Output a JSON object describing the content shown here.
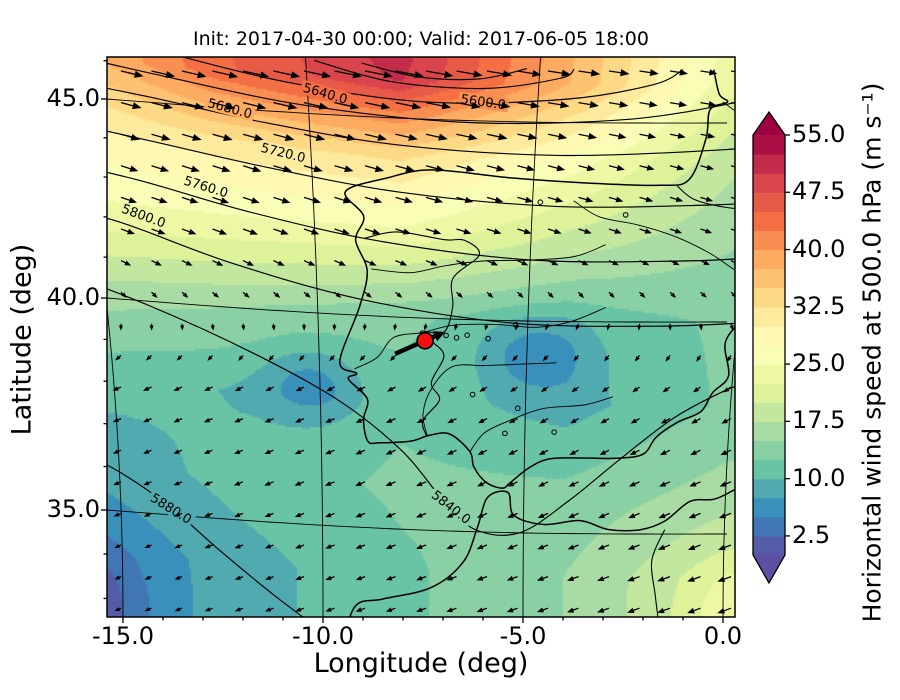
{
  "title": "Init: 2017-04-30 00:00; Valid: 2017-06-05 18:00",
  "axes": {
    "xlabel": "Longitude (deg)",
    "ylabel": "Latitude (deg)",
    "xticks": [
      "-15.0",
      "-10.0",
      "-5.0",
      "0.0"
    ],
    "yticks": [
      "45.0",
      "40.0",
      "35.0"
    ]
  },
  "colorbar": {
    "label": "Horizontal wind speed at 500.0 hPa (m s⁻¹)",
    "ticks": [
      "55.0",
      "47.5",
      "40.0",
      "32.5",
      "25.0",
      "17.5",
      "10.0",
      "2.5"
    ],
    "vmin": 0.0,
    "vmax": 55.0,
    "band_step": 2.5,
    "extend": "both",
    "colormap": "Spectral_r",
    "anchors": [
      "#5e4fa2",
      "#3288bd",
      "#66c2a5",
      "#abdda4",
      "#e6f598",
      "#ffffbf",
      "#fee08b",
      "#fdae61",
      "#f46d43",
      "#d53e4f",
      "#9e0142"
    ]
  },
  "chart_data": {
    "type": "heatmap",
    "subtype": "filled-contour wind speed map with geopotential contours and quiver",
    "xlabel": "Longitude (deg)",
    "ylabel": "Latitude (deg)",
    "xlim": [
      -16.5,
      0.5
    ],
    "ylim": [
      32.3,
      46.6
    ],
    "xtick_values": [
      -15,
      -10,
      -5,
      0
    ],
    "ytick_values": [
      45,
      40,
      35
    ],
    "wind_speed_grid": {
      "lons": [
        -16,
        -12,
        -8,
        -4,
        0
      ],
      "lats": [
        34,
        36,
        38,
        40,
        42,
        44,
        46
      ],
      "speed": [
        [
          5,
          9,
          12,
          15,
          21
        ],
        [
          8,
          11,
          13,
          13,
          16
        ],
        [
          11,
          10,
          12,
          9,
          13
        ],
        [
          16,
          15,
          13,
          11,
          13
        ],
        [
          24,
          24,
          24,
          19,
          15
        ],
        [
          28,
          31,
          33,
          26,
          17
        ],
        [
          33,
          44,
          49,
          36,
          20
        ]
      ],
      "u": [
        [
          -4,
          -8,
          -11,
          -14,
          -19
        ],
        [
          -7,
          -10,
          -12,
          -12,
          -15
        ],
        [
          -9,
          -9,
          -11,
          -8,
          -11
        ],
        [
          4,
          3,
          0,
          -2,
          2
        ],
        [
          22,
          22,
          22,
          17,
          13
        ],
        [
          27,
          30,
          31,
          25,
          16
        ],
        [
          32,
          43,
          48,
          34,
          19
        ]
      ],
      "v": [
        [
          -2,
          -3,
          -4,
          -5,
          -7
        ],
        [
          -3,
          -4,
          -5,
          -6,
          -6
        ],
        [
          -4,
          -4,
          -5,
          -5,
          -6
        ],
        [
          -5,
          -5,
          -5,
          -5,
          -5
        ],
        [
          -7,
          -8,
          -7,
          -6,
          -5
        ],
        [
          -8,
          -9,
          -8,
          -6,
          -4
        ],
        [
          -7,
          -10,
          -9,
          -5,
          -3
        ]
      ],
      "anomalies": [
        {
          "lon": -7.8,
          "lat": 46.8,
          "amp": 2.0,
          "rlon": 3.2,
          "rlat": 1.2
        },
        {
          "lon": -4.8,
          "lat": 39.2,
          "amp": -5.0,
          "rlon": 1.3,
          "rlat": 0.9
        },
        {
          "lon": -10.2,
          "lat": 38.3,
          "amp": -5.0,
          "rlon": 1.2,
          "rlat": 0.9
        },
        {
          "lon": -16.5,
          "lat": 32.8,
          "amp": -7.0,
          "rlon": 1.8,
          "rlat": 1.4
        },
        {
          "lon": 0.5,
          "lat": 33.0,
          "amp": 4.0,
          "rlon": 1.5,
          "rlat": 1.2
        }
      ]
    },
    "geopotential_contours": [
      {
        "level": "",
        "pts": [
          [
            -9.8,
            46.4
          ],
          [
            -8.2,
            45.95
          ],
          [
            -6.2,
            45.85
          ],
          [
            -4.6,
            46.15
          ],
          [
            -4.3,
            46.4
          ]
        ]
      },
      {
        "level": "",
        "pts": [
          [
            -8.8,
            46.4
          ],
          [
            -7.6,
            46.1
          ],
          [
            -6.3,
            46.1
          ],
          [
            -5.3,
            46.4
          ]
        ]
      },
      {
        "level": "5600.0",
        "pts": [
          [
            -13.2,
            46.4
          ],
          [
            -10.5,
            45.8
          ],
          [
            -7.5,
            45.45
          ],
          [
            -4.5,
            45.6
          ],
          [
            -2.6,
            46.0
          ],
          [
            -2.0,
            46.4
          ]
        ],
        "label": [
          -6.2,
          45.5
        ],
        "rot": 8
      },
      {
        "level": "5640.0",
        "pts": [
          [
            -15.8,
            46.4
          ],
          [
            -13.0,
            45.7
          ],
          [
            -10.0,
            45.2
          ],
          [
            -6.5,
            44.95
          ],
          [
            -3.0,
            45.1
          ],
          [
            -0.5,
            45.6
          ],
          [
            0.5,
            45.9
          ]
        ],
        "label": [
          -9.6,
          45.55
        ],
        "rot": 16
      },
      {
        "level": "5680.0",
        "pts": [
          [
            -16.6,
            45.85
          ],
          [
            -13.5,
            45.15
          ],
          [
            -11.0,
            44.7
          ],
          [
            -8.0,
            44.3
          ],
          [
            -4.5,
            44.15
          ],
          [
            -1.0,
            44.3
          ],
          [
            0.5,
            44.5
          ]
        ],
        "label": [
          -11.7,
          45.0
        ],
        "rot": 15
      },
      {
        "level": "5720.0",
        "pts": [
          [
            -16.6,
            44.75
          ],
          [
            -13.5,
            44.0
          ],
          [
            -11.0,
            43.55
          ],
          [
            -8.0,
            43.1
          ],
          [
            -4.5,
            42.85
          ],
          [
            -1.0,
            42.9
          ],
          [
            0.5,
            43.0
          ]
        ],
        "label": [
          -10.6,
          43.95
        ],
        "rot": 14
      },
      {
        "level": "5760.0",
        "pts": [
          [
            -16.6,
            43.65
          ],
          [
            -14.0,
            43.0
          ],
          [
            -11.5,
            42.4
          ],
          [
            -8.5,
            41.85
          ],
          [
            -5.0,
            41.5
          ],
          [
            -1.5,
            41.5
          ],
          [
            0.5,
            41.6
          ]
        ],
        "label": [
          -12.4,
          42.95
        ],
        "rot": 17
      },
      {
        "level": "5800.0",
        "pts": [
          [
            -16.6,
            42.5
          ],
          [
            -14.5,
            41.9
          ],
          [
            -12.0,
            41.1
          ],
          [
            -9.0,
            40.4
          ],
          [
            -5.5,
            39.95
          ],
          [
            -2.0,
            39.9
          ],
          [
            0.5,
            40.0
          ]
        ],
        "label": [
          -13.9,
          42.1
        ],
        "rot": 20
      },
      {
        "level": "5840.0",
        "pts": [
          [
            -16.6,
            40.9
          ],
          [
            -14.0,
            39.9
          ],
          [
            -11.5,
            38.9
          ],
          [
            -9.5,
            37.9
          ],
          [
            -8.0,
            36.8
          ],
          [
            -7.0,
            35.7
          ],
          [
            -6.2,
            35.05
          ],
          [
            -5.1,
            35.0
          ],
          [
            -3.9,
            35.75
          ],
          [
            -2.7,
            36.7
          ],
          [
            -1.4,
            37.7
          ],
          [
            -0.2,
            38.35
          ],
          [
            0.5,
            38.6
          ]
        ],
        "label": [
          -6.8,
          35.55
        ],
        "rot": 38
      },
      {
        "level": "5880.0",
        "pts": [
          [
            -16.6,
            36.7
          ],
          [
            -15.0,
            35.9
          ],
          [
            -13.8,
            35.2
          ],
          [
            -12.6,
            34.3
          ],
          [
            -11.3,
            33.4
          ],
          [
            -10.2,
            32.7
          ],
          [
            -9.6,
            32.2
          ]
        ],
        "label": [
          -13.75,
          35.15
        ],
        "rot": 32
      }
    ],
    "marker": {
      "lon": -7.45,
      "lat": 39.45,
      "color": "#f01010",
      "edge": "#000000",
      "arrow": {
        "dx1": -30,
        "dy1": 13,
        "dx2": 20,
        "dy2": -9
      }
    },
    "geography": {
      "coasts": [
        [
          [
            -1.35,
            46.4
          ],
          [
            -1.15,
            45.75
          ],
          [
            -0.95,
            45.55
          ],
          [
            -1.3,
            45.35
          ],
          [
            -1.3,
            44.6
          ],
          [
            -1.55,
            43.55
          ],
          [
            -2.2,
            43.4
          ],
          [
            -3.8,
            43.45
          ],
          [
            -5.5,
            43.55
          ],
          [
            -7.3,
            43.7
          ],
          [
            -8.3,
            43.45
          ],
          [
            -9.25,
            43.05
          ],
          [
            -8.85,
            42.45
          ],
          [
            -9.05,
            41.85
          ],
          [
            -8.8,
            41.1
          ],
          [
            -9.0,
            40.2
          ],
          [
            -9.5,
            38.85
          ],
          [
            -9.1,
            38.6
          ],
          [
            -9.3,
            38.45
          ],
          [
            -8.85,
            38.0
          ],
          [
            -8.95,
            37.5
          ],
          [
            -8.85,
            37.0
          ],
          [
            -8.55,
            36.98
          ],
          [
            -7.8,
            37.05
          ],
          [
            -7.35,
            37.2
          ],
          [
            -6.85,
            37.25
          ],
          [
            -6.35,
            36.85
          ],
          [
            -6.25,
            36.5
          ],
          [
            -5.95,
            36.15
          ],
          [
            -5.55,
            36.02
          ],
          [
            -5.35,
            36.15
          ],
          [
            -4.9,
            36.5
          ],
          [
            -4.4,
            36.72
          ],
          [
            -3.6,
            36.75
          ],
          [
            -2.75,
            36.75
          ],
          [
            -2.1,
            36.85
          ],
          [
            -1.8,
            37.25
          ],
          [
            -1.3,
            37.6
          ],
          [
            -0.75,
            37.85
          ],
          [
            -0.5,
            38.3
          ],
          [
            -0.15,
            38.7
          ],
          [
            -0.3,
            39.5
          ],
          [
            0.05,
            40.05
          ],
          [
            0.5,
            40.55
          ]
        ],
        [
          [
            -9.55,
            32.2
          ],
          [
            -9.2,
            33.2
          ],
          [
            -8.5,
            33.4
          ],
          [
            -7.3,
            33.7
          ],
          [
            -6.5,
            34.3
          ],
          [
            -6.15,
            35.1
          ],
          [
            -5.9,
            35.8
          ],
          [
            -5.4,
            35.92
          ],
          [
            -5.25,
            35.4
          ],
          [
            -4.5,
            35.2
          ],
          [
            -3.6,
            35.3
          ],
          [
            -2.9,
            35.1
          ],
          [
            -2.1,
            35.1
          ],
          [
            -1.5,
            35.3
          ],
          [
            -0.9,
            35.75
          ],
          [
            -0.3,
            35.8
          ],
          [
            0.15,
            36.0
          ],
          [
            0.5,
            36.2
          ]
        ]
      ],
      "borders": [
        [
          [
            -8.85,
            41.9
          ],
          [
            -8.1,
            42.1
          ],
          [
            -7.0,
            41.95
          ],
          [
            -6.55,
            41.95
          ],
          [
            -6.2,
            41.6
          ],
          [
            -6.8,
            41.0
          ],
          [
            -6.8,
            40.3
          ],
          [
            -7.0,
            39.68
          ],
          [
            -7.55,
            39.68
          ],
          [
            -7.3,
            39.45
          ],
          [
            -7.0,
            39.1
          ],
          [
            -7.3,
            38.45
          ],
          [
            -7.1,
            38.05
          ],
          [
            -7.5,
            37.55
          ],
          [
            -7.42,
            37.2
          ]
        ],
        [
          [
            -1.8,
            43.38
          ],
          [
            -1.4,
            43.05
          ],
          [
            -0.7,
            42.85
          ],
          [
            0.5,
            42.7
          ]
        ],
        [
          [
            -1.5,
            35.1
          ],
          [
            -1.8,
            34.4
          ],
          [
            -1.7,
            33.6
          ],
          [
            -1.6,
            32.9
          ],
          [
            -1.55,
            32.3
          ]
        ]
      ],
      "rivers": [
        [
          [
            -8.7,
            41.15
          ],
          [
            -7.8,
            41.1
          ],
          [
            -7.0,
            41.3
          ],
          [
            -6.1,
            41.45
          ],
          [
            -5.0,
            41.5
          ],
          [
            -4.0,
            41.6
          ],
          [
            -3.3,
            41.9
          ]
        ],
        [
          [
            -9.15,
            38.7
          ],
          [
            -8.6,
            39.0
          ],
          [
            -8.2,
            39.5
          ],
          [
            -7.5,
            39.65
          ],
          [
            -6.8,
            39.85
          ],
          [
            -5.8,
            39.9
          ],
          [
            -4.8,
            39.85
          ],
          [
            -4.0,
            40.0
          ],
          [
            -3.2,
            40.35
          ]
        ],
        [
          [
            -7.4,
            37.2
          ],
          [
            -7.5,
            37.7
          ],
          [
            -7.3,
            38.3
          ],
          [
            -6.8,
            38.85
          ],
          [
            -6.0,
            38.9
          ],
          [
            -5.2,
            38.95
          ],
          [
            -4.3,
            39.0
          ]
        ],
        [
          [
            -6.35,
            36.85
          ],
          [
            -6.0,
            37.3
          ],
          [
            -5.4,
            37.6
          ],
          [
            -4.6,
            37.9
          ],
          [
            -3.6,
            38.0
          ],
          [
            -2.9,
            38.2
          ]
        ],
        [
          [
            -4.1,
            43.0
          ],
          [
            -3.5,
            42.6
          ],
          [
            -2.6,
            42.4
          ],
          [
            -1.7,
            42.1
          ],
          [
            -0.9,
            41.7
          ],
          [
            -0.3,
            41.3
          ],
          [
            0.3,
            40.9
          ]
        ],
        [
          [
            -1.05,
            45.55
          ],
          [
            -0.5,
            45.1
          ],
          [
            0.0,
            44.6
          ],
          [
            0.5,
            44.3
          ]
        ]
      ],
      "lakes": [
        [
          -6.95,
          39.6
        ],
        [
          -6.7,
          39.55
        ],
        [
          -6.45,
          39.62
        ],
        [
          -5.95,
          39.55
        ],
        [
          -5.3,
          39.9
        ],
        [
          -6.3,
          38.2
        ],
        [
          -5.2,
          37.9
        ],
        [
          -2.9,
          42.65
        ],
        [
          -4.85,
          42.95
        ],
        [
          -4.3,
          37.35
        ],
        [
          -5.5,
          37.3
        ]
      ]
    },
    "quiver": {
      "x_start": 121,
      "x_step": 30.5,
      "cols": 21,
      "y_start": 71,
      "y_step": 31.6,
      "rows": 18
    }
  }
}
